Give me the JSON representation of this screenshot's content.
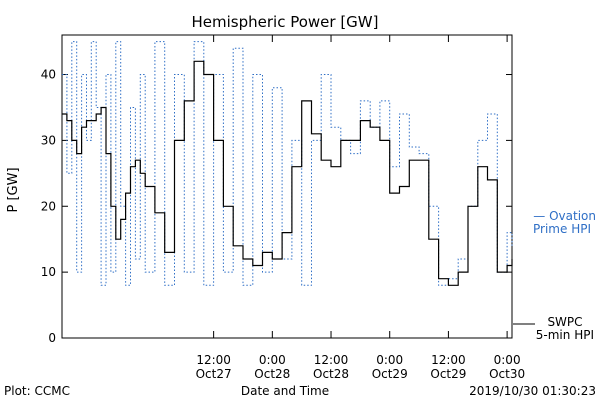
{
  "chart_data": {
    "type": "line",
    "title": "Hemispheric Power [GW]",
    "xlabel": "Date and Time",
    "ylabel": "P [GW]",
    "ylim": [
      0,
      46
    ],
    "xlim": [
      "2019-10-26T05:00",
      "2019-10-30T01:00"
    ],
    "y_ticks": [
      0,
      10,
      20,
      30,
      40
    ],
    "x_ticks": [
      {
        "time": "12:00",
        "date": "Oct27",
        "at": "2019-10-27T12:00"
      },
      {
        "time": "0:00",
        "date": "Oct28",
        "at": "2019-10-28T00:00"
      },
      {
        "time": "12:00",
        "date": "Oct28",
        "at": "2019-10-28T12:00"
      },
      {
        "time": "0:00",
        "date": "Oct29",
        "at": "2019-10-29T00:00"
      },
      {
        "time": "12:00",
        "date": "Oct29",
        "at": "2019-10-29T12:00"
      },
      {
        "time": "0:00",
        "date": "Oct30",
        "at": "2019-10-30T00:00"
      }
    ],
    "colors": {
      "swpc": "#000000",
      "ovation": "#2f6fc6",
      "axes": "#000000"
    },
    "series": [
      {
        "name": "SWPC 5-min HPI",
        "legend_line1": "SWPC",
        "legend_line2": "5-min HPI",
        "style": "solid",
        "x": [
          "2019-10-26T05:00",
          "2019-10-26T06:00",
          "2019-10-26T07:00",
          "2019-10-26T08:00",
          "2019-10-26T09:00",
          "2019-10-26T10:00",
          "2019-10-26T12:00",
          "2019-10-26T13:00",
          "2019-10-26T14:00",
          "2019-10-26T15:00",
          "2019-10-26T16:00",
          "2019-10-26T17:00",
          "2019-10-26T18:00",
          "2019-10-26T19:00",
          "2019-10-26T20:00",
          "2019-10-26T21:00",
          "2019-10-26T22:00",
          "2019-10-26T23:00",
          "2019-10-27T00:00",
          "2019-10-27T02:00",
          "2019-10-27T04:00",
          "2019-10-27T06:00",
          "2019-10-27T08:00",
          "2019-10-27T10:00",
          "2019-10-27T12:00",
          "2019-10-27T14:00",
          "2019-10-27T16:00",
          "2019-10-27T18:00",
          "2019-10-27T20:00",
          "2019-10-27T22:00",
          "2019-10-28T00:00",
          "2019-10-28T02:00",
          "2019-10-28T04:00",
          "2019-10-28T06:00",
          "2019-10-28T08:00",
          "2019-10-28T10:00",
          "2019-10-28T12:00",
          "2019-10-28T14:00",
          "2019-10-28T16:00",
          "2019-10-28T18:00",
          "2019-10-28T20:00",
          "2019-10-28T22:00",
          "2019-10-29T00:00",
          "2019-10-29T02:00",
          "2019-10-29T04:00",
          "2019-10-29T06:00",
          "2019-10-29T08:00",
          "2019-10-29T10:00",
          "2019-10-29T12:00",
          "2019-10-29T14:00",
          "2019-10-29T16:00",
          "2019-10-29T18:00",
          "2019-10-29T20:00",
          "2019-10-29T22:00",
          "2019-10-30T00:00",
          "2019-10-30T01:00"
        ],
        "y": [
          34,
          33,
          30,
          28,
          32,
          33,
          34,
          35,
          28,
          20,
          15,
          18,
          22,
          26,
          27,
          25,
          23,
          23,
          19,
          13,
          30,
          36,
          42,
          40,
          30,
          20,
          14,
          12,
          11,
          13,
          12,
          16,
          26,
          36,
          31,
          27,
          26,
          30,
          30,
          33,
          32,
          30,
          22,
          23,
          27,
          27,
          15,
          9,
          8,
          10,
          20,
          26,
          24,
          10,
          11,
          12
        ]
      },
      {
        "name": "Ovation Prime HPI",
        "legend_line1": "— Ovation",
        "legend_line2": "Prime HPI",
        "style": "dotted",
        "x": [
          "2019-10-26T05:00",
          "2019-10-26T06:00",
          "2019-10-26T07:00",
          "2019-10-26T08:00",
          "2019-10-26T09:00",
          "2019-10-26T10:00",
          "2019-10-26T11:00",
          "2019-10-26T12:00",
          "2019-10-26T13:00",
          "2019-10-26T14:00",
          "2019-10-26T15:00",
          "2019-10-26T16:00",
          "2019-10-26T17:00",
          "2019-10-26T18:00",
          "2019-10-26T19:00",
          "2019-10-26T20:00",
          "2019-10-26T21:00",
          "2019-10-26T22:00",
          "2019-10-27T00:00",
          "2019-10-27T02:00",
          "2019-10-27T04:00",
          "2019-10-27T06:00",
          "2019-10-27T08:00",
          "2019-10-27T10:00",
          "2019-10-27T12:00",
          "2019-10-27T14:00",
          "2019-10-27T16:00",
          "2019-10-27T18:00",
          "2019-10-27T20:00",
          "2019-10-27T22:00",
          "2019-10-28T00:00",
          "2019-10-28T02:00",
          "2019-10-28T04:00",
          "2019-10-28T06:00",
          "2019-10-28T08:00",
          "2019-10-28T10:00",
          "2019-10-28T12:00",
          "2019-10-28T14:00",
          "2019-10-28T16:00",
          "2019-10-28T18:00",
          "2019-10-28T20:00",
          "2019-10-28T22:00",
          "2019-10-29T00:00",
          "2019-10-29T02:00",
          "2019-10-29T04:00",
          "2019-10-29T06:00",
          "2019-10-29T08:00",
          "2019-10-29T10:00",
          "2019-10-29T12:00",
          "2019-10-29T14:00",
          "2019-10-29T16:00",
          "2019-10-29T18:00",
          "2019-10-29T20:00",
          "2019-10-29T22:00",
          "2019-10-30T00:00",
          "2019-10-30T01:00"
        ],
        "y": [
          40,
          25,
          45,
          10,
          40,
          30,
          45,
          35,
          8,
          40,
          10,
          45,
          20,
          8,
          35,
          12,
          40,
          10,
          45,
          8,
          40,
          10,
          45,
          8,
          40,
          10,
          44,
          8,
          40,
          10,
          38,
          12,
          30,
          8,
          30,
          40,
          32,
          30,
          28,
          36,
          32,
          36,
          26,
          34,
          29,
          28,
          20,
          8,
          9,
          12,
          20,
          30,
          34,
          10,
          16,
          14
        ]
      }
    ]
  },
  "footer": {
    "left": "Plot: CCMC",
    "right": "2019/10/30 01:30:23"
  }
}
